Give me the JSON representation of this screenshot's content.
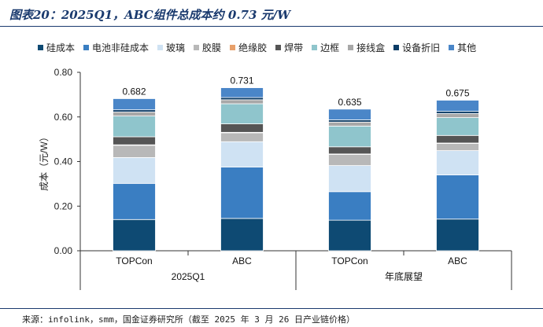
{
  "header": {
    "title": "图表20：2025Q1，ABC组件总成本约 0.73 元/W"
  },
  "footer": {
    "source": "来源：infolink，smm，国金证券研究所（截至 2025 年 3 月 26 日产业链价格）"
  },
  "chart_data": {
    "type": "bar",
    "stacked": true,
    "ylabel": "成本（元/W）",
    "ylim": [
      0,
      0.8
    ],
    "yticks": [
      "0.00",
      "0.20",
      "0.40",
      "0.60",
      "0.80"
    ],
    "categories": [
      "TOPCon",
      "ABC",
      "TOPCon",
      "ABC"
    ],
    "groups": [
      {
        "label": "2025Q1",
        "categories": [
          0,
          1
        ]
      },
      {
        "label": "年底展望",
        "categories": [
          2,
          3
        ]
      }
    ],
    "totals": [
      0.682,
      0.731,
      0.635,
      0.675
    ],
    "total_labels": [
      "0.682",
      "0.731",
      "0.635",
      "0.675"
    ],
    "legend_position": "top",
    "series": [
      {
        "name": "硅成本",
        "color": "#0e4a73",
        "values": [
          0.14,
          0.145,
          0.137,
          0.142
        ]
      },
      {
        "name": "电池非硅成本",
        "color": "#3a7ec2",
        "values": [
          0.162,
          0.23,
          0.128,
          0.198
        ]
      },
      {
        "name": "玻璃",
        "color": "#cfe2f3",
        "values": [
          0.116,
          0.114,
          0.117,
          0.109
        ]
      },
      {
        "name": "胶膜",
        "color": "#b8b8b8",
        "values": [
          0.055,
          0.04,
          0.05,
          0.032
        ]
      },
      {
        "name": "绝缘胶",
        "color": "#e8a06a",
        "values": [
          0.002,
          0.002,
          0.002,
          0.002
        ]
      },
      {
        "name": "焊带",
        "color": "#555555",
        "values": [
          0.036,
          0.038,
          0.032,
          0.034
        ]
      },
      {
        "name": "边框",
        "color": "#8fc5cc",
        "values": [
          0.093,
          0.09,
          0.093,
          0.08
        ]
      },
      {
        "name": "接线盒",
        "color": "#a8a8a8",
        "values": [
          0.018,
          0.018,
          0.018,
          0.018
        ]
      },
      {
        "name": "设备折旧",
        "color": "#0c3c66",
        "values": [
          0.01,
          0.01,
          0.01,
          0.01
        ]
      },
      {
        "name": "其他",
        "color": "#4a86c8",
        "values": [
          0.05,
          0.044,
          0.048,
          0.05
        ]
      }
    ]
  }
}
